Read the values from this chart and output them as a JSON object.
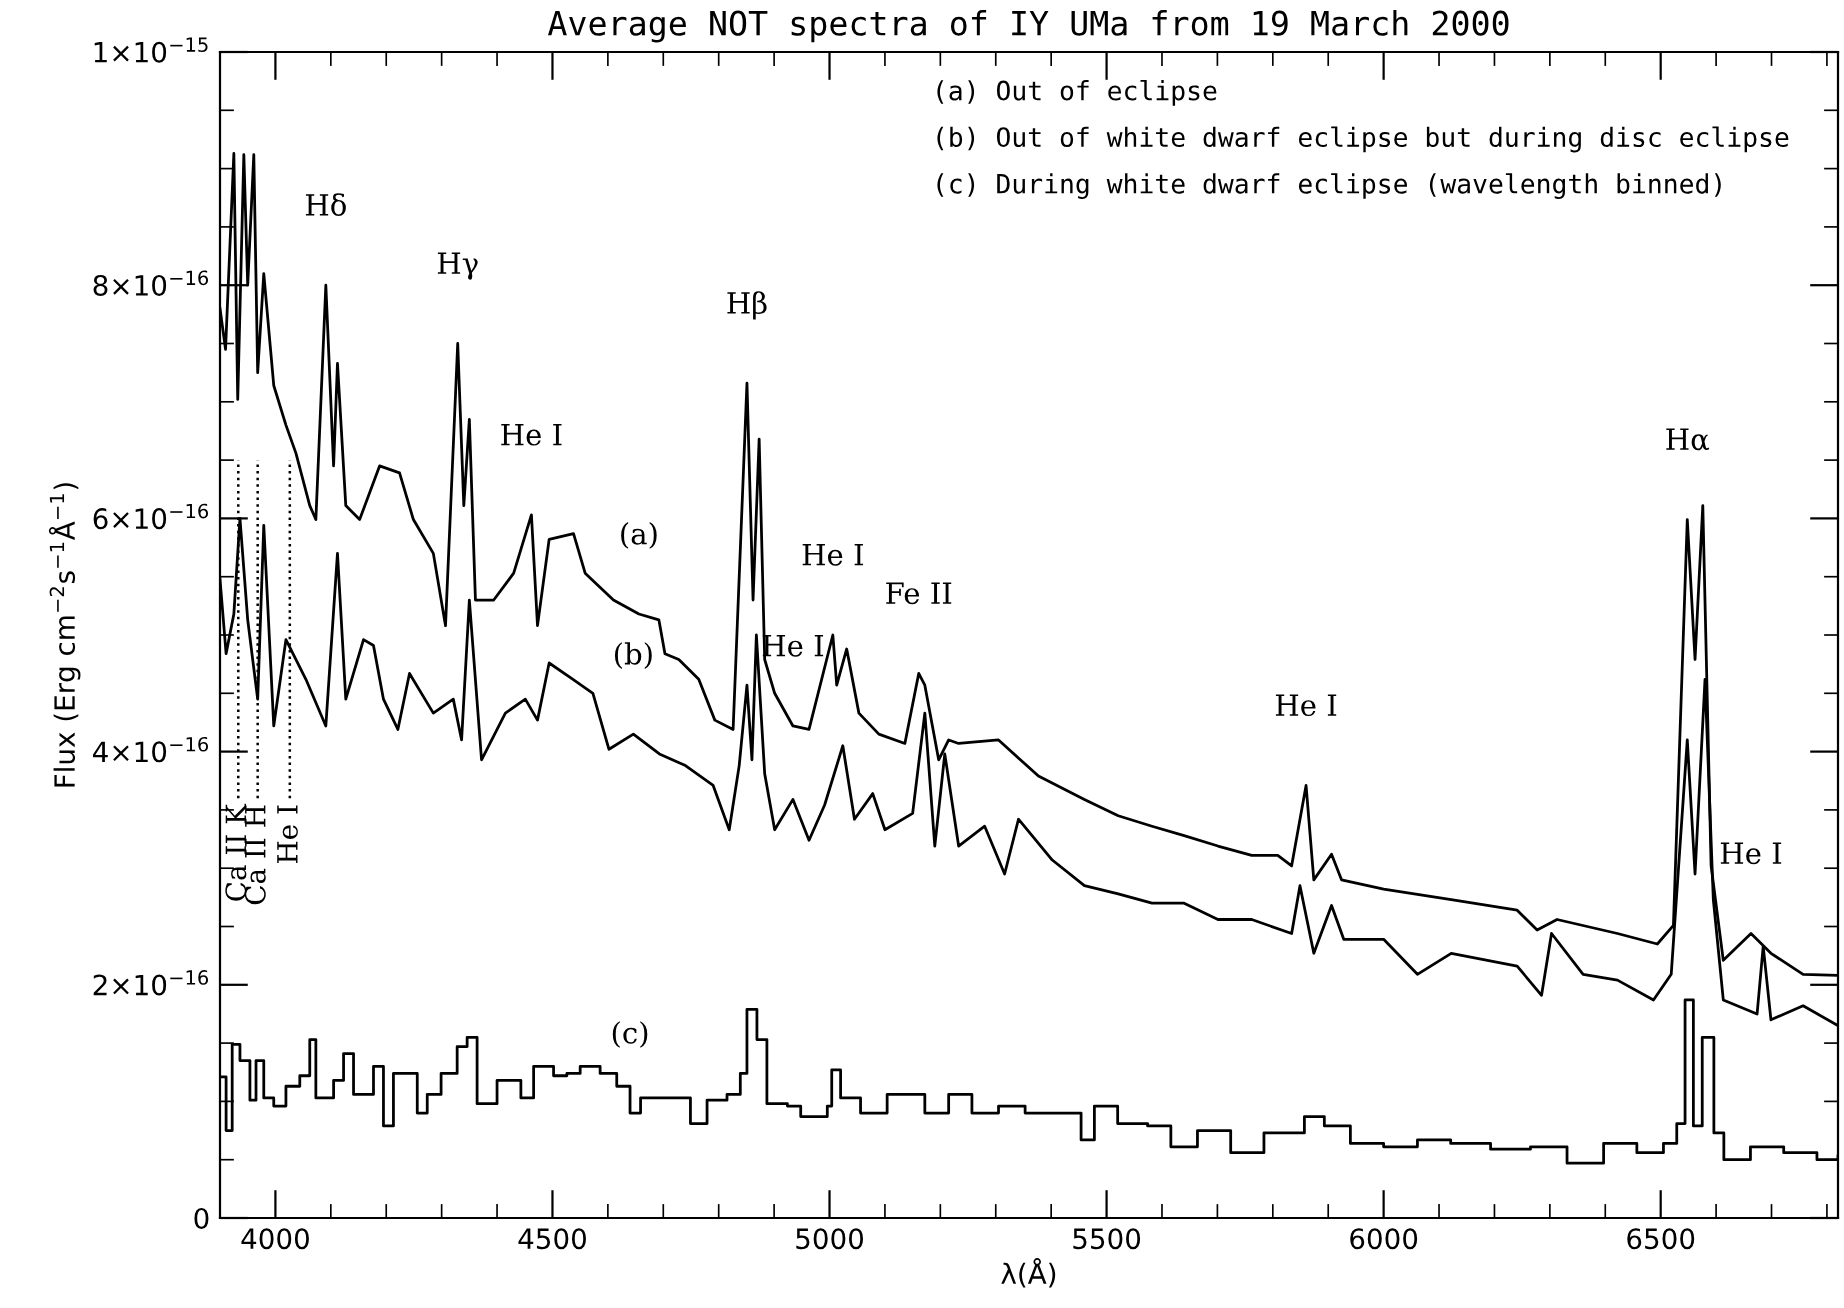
{
  "chart_data": {
    "type": "line",
    "title": "Average NOT spectra of IY UMa from 19 March 2000",
    "xlabel": "λ(Å)",
    "ylabel": "Flux (Erg cm$^{−2}$s$^{−1}$Å$^{−1}$)",
    "xlim": [
      3900,
      6820
    ],
    "ylim": [
      0,
      1e-15
    ],
    "xticks": [
      {
        "value": 3900,
        "label": null
      },
      4000,
      {
        "value": 4100,
        "label": null
      },
      {
        "value": 4200,
        "label": null
      },
      {
        "value": 4300,
        "label": null
      },
      {
        "value": 4400,
        "label": null
      },
      4500,
      {
        "value": 4600,
        "label": null
      },
      {
        "value": 4700,
        "label": null
      },
      {
        "value": 4800,
        "label": null
      },
      {
        "value": 4900,
        "label": null
      },
      5000,
      {
        "value": 5100,
        "label": null
      },
      {
        "value": 5200,
        "label": null
      },
      {
        "value": 5300,
        "label": null
      },
      {
        "value": 5400,
        "label": null
      },
      5500,
      {
        "value": 5600,
        "label": null
      },
      {
        "value": 5700,
        "label": null
      },
      {
        "value": 5800,
        "label": null
      },
      {
        "value": 5900,
        "label": null
      },
      6000,
      {
        "value": 6100,
        "label": null
      },
      {
        "value": 6200,
        "label": null
      },
      {
        "value": 6300,
        "label": null
      },
      {
        "value": 6400,
        "label": null
      },
      6500,
      {
        "value": 6600,
        "label": null
      },
      {
        "value": 6700,
        "label": null
      },
      {
        "value": 6800,
        "label": null
      }
    ],
    "yticks": [
      {
        "value": 0,
        "label": "0"
      },
      {
        "value": 5e-17,
        "label": null
      },
      {
        "value": 1e-16,
        "label": null
      },
      {
        "value": 1.5e-16,
        "label": null
      },
      {
        "value": 2e-16,
        "label": "2×10$^{−16}$"
      },
      {
        "value": 2.5e-16,
        "label": null
      },
      {
        "value": 3e-16,
        "label": null
      },
      {
        "value": 3.5e-16,
        "label": null
      },
      {
        "value": 4e-16,
        "label": "4×10$^{−16}$"
      },
      {
        "value": 4.5e-16,
        "label": null
      },
      {
        "value": 5e-16,
        "label": null
      },
      {
        "value": 5.5e-16,
        "label": null
      },
      {
        "value": 6e-16,
        "label": "6×10$^{−16}$"
      },
      {
        "value": 6.5e-16,
        "label": null
      },
      {
        "value": 7e-16,
        "label": null
      },
      {
        "value": 7.5e-16,
        "label": null
      },
      {
        "value": 8e-16,
        "label": "8×10$^{−16}$"
      },
      {
        "value": 8.5e-16,
        "label": null
      },
      {
        "value": 9e-16,
        "label": null
      },
      {
        "value": 9.5e-16,
        "label": null
      },
      {
        "value": 1e-15,
        "label": "1×10$^{−15}$"
      }
    ],
    "series": [
      {
        "color": "#000000",
        "x": [
          3900,
          3910,
          3925,
          3932,
          3943,
          3950,
          3961,
          3968,
          3979,
          3997,
          4019,
          4037,
          4062,
          4073,
          4091,
          4105,
          4112,
          4127,
          4152,
          4188,
          4224,
          4249,
          4285,
          4307,
          4329,
          4340,
          4350,
          4361,
          4394,
          4430,
          4462,
          4473,
          4494,
          4538,
          4559,
          4610,
          4656,
          4692,
          4703,
          4728,
          4764,
          4793,
          4826,
          4851,
          4862,
          4873,
          4883,
          4901,
          4934,
          4963,
          5006,
          5013,
          5031,
          5053,
          5089,
          5136,
          5161,
          5172,
          5197,
          5215,
          5233,
          5305,
          5377,
          5460,
          5521,
          5582,
          5640,
          5701,
          5762,
          5809,
          5834,
          5860,
          5874,
          5906,
          5924,
          6000,
          6122,
          6241,
          6277,
          6313,
          6422,
          6494,
          6523,
          6548,
          6562,
          6576,
          6591,
          6613,
          6663,
          6699,
          6757,
          6820
        ],
        "values": [
          7.8e-16,
          7.45e-16,
          9.13e-16,
          7.02e-16,
          9.12e-16,
          8e-16,
          9.12e-16,
          7.25e-16,
          8.1e-16,
          7.14e-16,
          6.8e-16,
          6.56e-16,
          6.11e-16,
          5.99e-16,
          8e-16,
          6.45e-16,
          7.33e-16,
          6.11e-16,
          5.99e-16,
          6.45e-16,
          6.39e-16,
          5.99e-16,
          5.7e-16,
          5.08e-16,
          7.5e-16,
          6.11e-16,
          6.85e-16,
          5.3e-16,
          5.3e-16,
          5.53e-16,
          6.03e-16,
          5.08e-16,
          5.82e-16,
          5.87e-16,
          5.53e-16,
          5.3e-16,
          5.18e-16,
          5.13e-16,
          4.84e-16,
          4.79e-16,
          4.62e-16,
          4.27e-16,
          4.19e-16,
          7.16e-16,
          5.3e-16,
          6.68e-16,
          4.79e-16,
          4.5e-16,
          4.22e-16,
          4.19e-16,
          5e-16,
          4.57e-16,
          4.88e-16,
          4.33e-16,
          4.15e-16,
          4.07e-16,
          4.67e-16,
          4.57e-16,
          3.93e-16,
          4.1e-16,
          4.07e-16,
          4.1e-16,
          3.79e-16,
          3.59e-16,
          3.45e-16,
          3.36e-16,
          3.28e-16,
          3.19e-16,
          3.11e-16,
          3.11e-16,
          3.02e-16,
          3.71e-16,
          2.9e-16,
          3.12e-16,
          2.9e-16,
          2.82e-16,
          2.73e-16,
          2.64e-16,
          2.47e-16,
          2.56e-16,
          2.44e-16,
          2.35e-16,
          2.51e-16,
          5.99e-16,
          4.79e-16,
          6.11e-16,
          3.02e-16,
          2.21e-16,
          2.44e-16,
          2.27e-16,
          2.09e-16,
          2.08e-16
        ]
      },
      {
        "color": "#000000",
        "x": [
          3900,
          3911,
          3925,
          3936,
          3950,
          3968,
          3979,
          3997,
          4019,
          4055,
          4091,
          4112,
          4127,
          4159,
          4177,
          4195,
          4221,
          4242,
          4285,
          4321,
          4336,
          4350,
          4372,
          4415,
          4451,
          4473,
          4494,
          4537,
          4573,
          4602,
          4646,
          4693,
          4740,
          4790,
          4819,
          4837,
          4851,
          4860,
          4868,
          4883,
          4901,
          4934,
          4963,
          4991,
          5024,
          5045,
          5078,
          5100,
          5150,
          5172,
          5190,
          5208,
          5233,
          5280,
          5316,
          5341,
          5402,
          5460,
          5521,
          5582,
          5640,
          5701,
          5762,
          5834,
          5849,
          5874,
          5906,
          5928,
          6000,
          6061,
          6122,
          6241,
          6285,
          6303,
          6360,
          6422,
          6487,
          6519,
          6548,
          6562,
          6580,
          6595,
          6613,
          6674,
          6685,
          6699,
          6757,
          6820
        ],
        "values": [
          5.48e-16,
          4.84e-16,
          5.18e-16,
          6e-16,
          5.13e-16,
          4.45e-16,
          5.94e-16,
          4.22e-16,
          4.96e-16,
          4.62e-16,
          4.22e-16,
          5.7e-16,
          4.45e-16,
          4.96e-16,
          4.91e-16,
          4.45e-16,
          4.19e-16,
          4.67e-16,
          4.33e-16,
          4.45e-16,
          4.1e-16,
          5.3e-16,
          3.93e-16,
          4.33e-16,
          4.45e-16,
          4.27e-16,
          4.76e-16,
          4.62e-16,
          4.5e-16,
          4.02e-16,
          4.15e-16,
          3.98e-16,
          3.88e-16,
          3.71e-16,
          3.33e-16,
          3.88e-16,
          4.57e-16,
          3.93e-16,
          5e-16,
          3.81e-16,
          3.33e-16,
          3.59e-16,
          3.24e-16,
          3.54e-16,
          4.05e-16,
          3.42e-16,
          3.64e-16,
          3.33e-16,
          3.47e-16,
          4.33e-16,
          3.19e-16,
          3.98e-16,
          3.19e-16,
          3.36e-16,
          2.95e-16,
          3.42e-16,
          3.07e-16,
          2.85e-16,
          2.78e-16,
          2.7e-16,
          2.7e-16,
          2.56e-16,
          2.56e-16,
          2.44e-16,
          2.85e-16,
          2.27e-16,
          2.68e-16,
          2.39e-16,
          2.39e-16,
          2.09e-16,
          2.27e-16,
          2.16e-16,
          1.91e-16,
          2.44e-16,
          2.09e-16,
          2.04e-16,
          1.87e-16,
          2.09e-16,
          4.1e-16,
          2.95e-16,
          4.62e-16,
          2.73e-16,
          1.87e-16,
          1.75e-16,
          2.33e-16,
          1.7e-16,
          1.82e-16,
          1.65e-16
        ]
      },
      {
        "type": "step",
        "color": "#000000",
        "x": [
          3900,
          3911,
          3922,
          3936,
          3954,
          3965,
          3979,
          3997,
          4019,
          4044,
          4062,
          4073,
          4105,
          4123,
          4141,
          4177,
          4195,
          4213,
          4256,
          4274,
          4299,
          4328,
          4346,
          4364,
          4400,
          4443,
          4466,
          4502,
          4526,
          4550,
          4586,
          4616,
          4640,
          4659,
          4707,
          4749,
          4779,
          4815,
          4839,
          4851,
          4869,
          4887,
          4924,
          4948,
          4996,
          5004,
          5020,
          5056,
          5104,
          5152,
          5172,
          5215,
          5257,
          5305,
          5353,
          5401,
          5454,
          5478,
          5520,
          5574,
          5616,
          5664,
          5724,
          5784,
          5857,
          5893,
          5940,
          6000,
          6061,
          6121,
          6193,
          6265,
          6331,
          6397,
          6457,
          6505,
          6529,
          6544,
          6559,
          6575,
          6596,
          6614,
          6662,
          6722,
          6782,
          6820
        ],
        "values": [
          1.21e-16,
          7.5e-17,
          1.49e-16,
          1.35e-16,
          1.01e-16,
          1.35e-16,
          1.03e-16,
          9.6e-17,
          1.13e-16,
          1.22e-16,
          1.53e-16,
          1.03e-16,
          1.18e-16,
          1.41e-16,
          1.06e-16,
          1.3e-16,
          7.9e-17,
          1.24e-16,
          9e-17,
          1.06e-16,
          1.24e-16,
          1.47e-16,
          1.55e-16,
          9.8e-17,
          1.18e-16,
          1.03e-16,
          1.3e-16,
          1.22e-16,
          1.24e-16,
          1.3e-16,
          1.24e-16,
          1.13e-16,
          9e-17,
          1.03e-16,
          1.03e-16,
          8.1e-17,
          1.01e-16,
          1.06e-16,
          1.24e-16,
          1.79e-16,
          1.53e-16,
          9.8e-17,
          9.6e-17,
          8.7e-17,
          9.6e-17,
          1.27e-16,
          1.03e-16,
          9e-17,
          1.06e-16,
          1.06e-16,
          9e-17,
          1.06e-16,
          9e-17,
          9.6e-17,
          9e-17,
          9e-17,
          6.7e-17,
          9.6e-17,
          8.1e-17,
          7.9e-17,
          6.1e-17,
          7.5e-17,
          5.6e-17,
          7.3e-17,
          8.7e-17,
          7.9e-17,
          6.4e-17,
          6.1e-17,
          6.7e-17,
          6.4e-17,
          5.9e-17,
          6.1e-17,
          4.7e-17,
          6.4e-17,
          5.6e-17,
          6.4e-17,
          8.1e-17,
          1.87e-16,
          7.9e-17,
          1.55e-16,
          7.3e-17,
          5e-17,
          6.1e-17,
          5.6e-17,
          5e-17,
          5.3e-17
        ]
      }
    ],
    "ref_lines": [
      {
        "axis": "x",
        "value": 3933,
        "label": "Ca II K",
        "line_style": "dotted"
      },
      {
        "axis": "x",
        "value": 3968,
        "label": "Ca II H",
        "line_style": "dotted"
      },
      {
        "axis": "x",
        "value": 4026,
        "label": "He I",
        "line_style": "dotted"
      }
    ],
    "annotations": [
      "(a) Out of eclipse",
      "(b) Out of white dwarf eclipse but during disc eclipse",
      "(c) During white dwarf eclipse (wavelength binned)",
      {
        "text": "Hδ",
        "x": 4091,
        "y": 8e-16
      },
      {
        "text": "Hγ",
        "x": 4329,
        "y": 7.5e-16
      },
      {
        "text": "He I",
        "x": 4462,
        "y": 6.03e-16
      },
      {
        "text": "Hβ",
        "x": 4851,
        "y": 7.16e-16
      },
      {
        "text": "He I",
        "x": 4934,
        "y": 4.22e-16
      },
      {
        "text": "He I",
        "x": 5006,
        "y": 5e-16
      },
      {
        "text": "Fe II",
        "x": 5161,
        "y": 4.67e-16
      },
      {
        "text": "He I",
        "x": 5860,
        "y": 3.71e-16
      },
      {
        "text": "Hα",
        "x": 6548,
        "y": 5.99e-16
      },
      {
        "text": "He I",
        "x": 6663,
        "y": 2.44e-16
      },
      {
        "text": "(a)",
        "x": 4656,
        "y": 5.18e-16
      },
      {
        "text": "(b)",
        "x": 4646,
        "y": 4.15e-16
      },
      {
        "text": "(c)",
        "x": 4640,
        "y": 9e-17
      }
    ]
  }
}
